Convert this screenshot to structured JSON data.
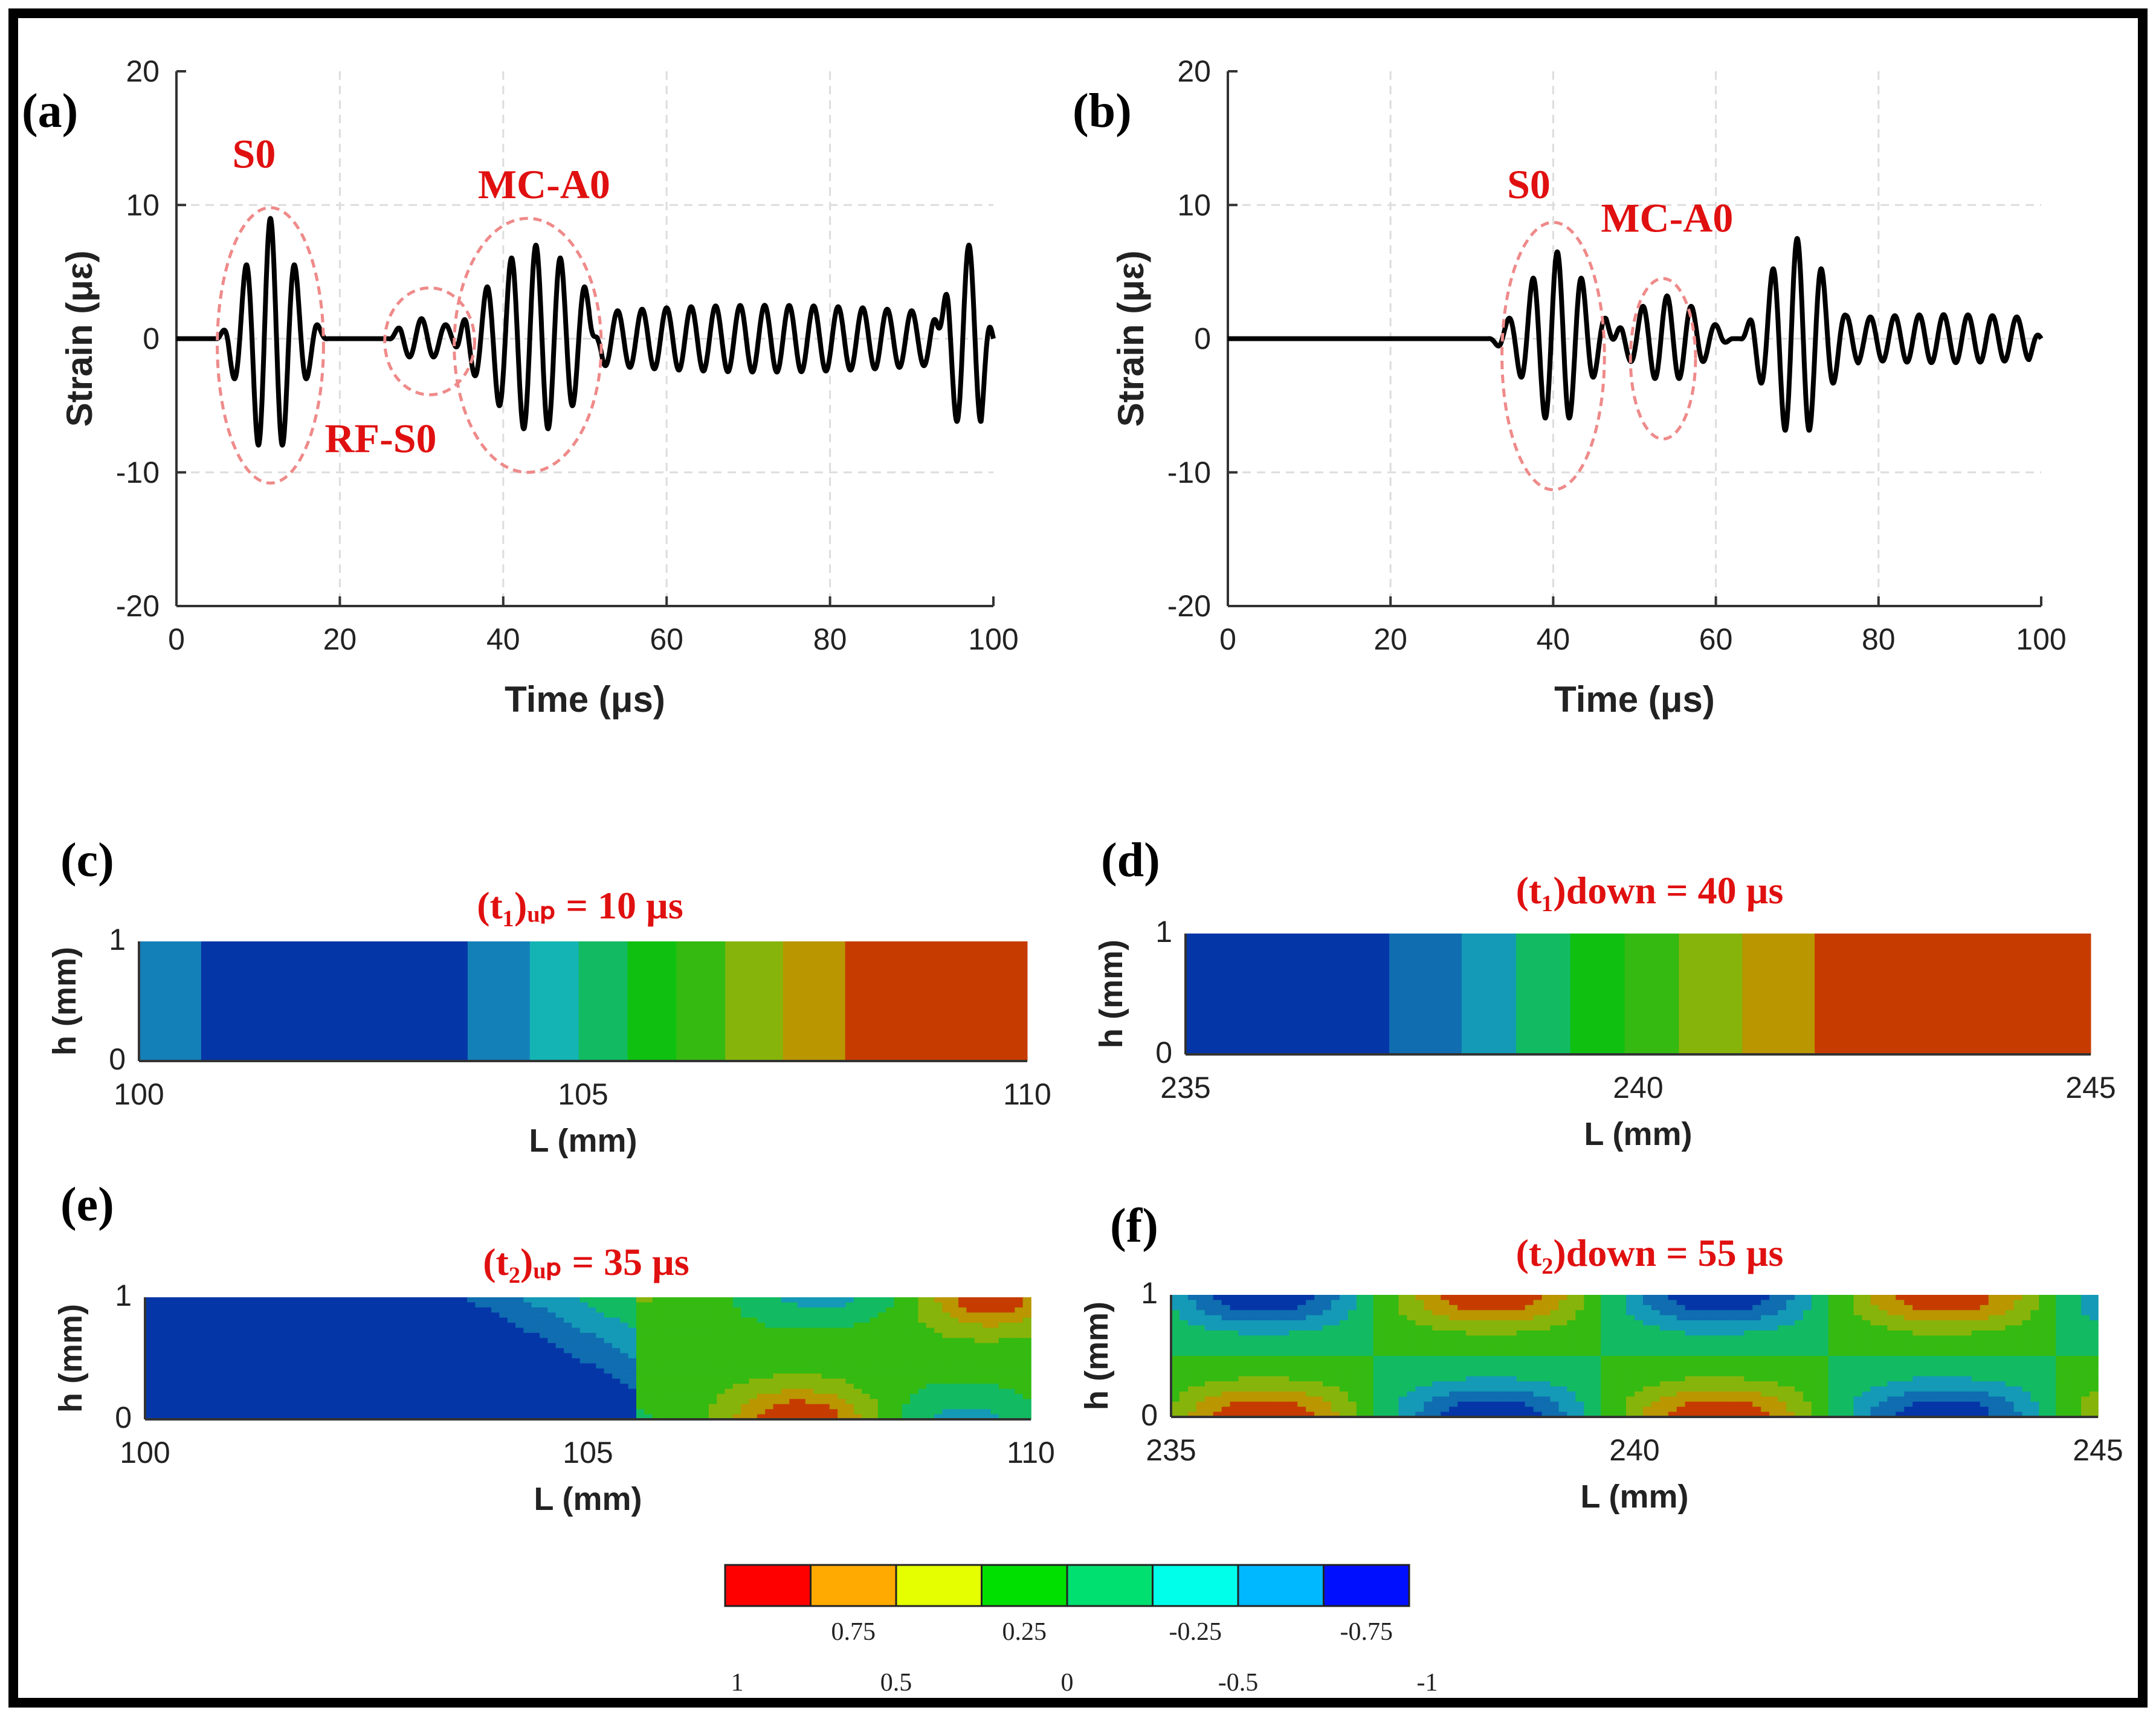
{
  "figure": {
    "border_color": "#000000",
    "annotation_color": "#e01010",
    "ellipse_color": "#ef8a8a"
  },
  "panels": {
    "a": {
      "label": "(a)"
    },
    "b": {
      "label": "(b)"
    },
    "c": {
      "label": "(c)",
      "title": "(t₁)ᵤₚ = 10 µs"
    },
    "d": {
      "label": "(d)",
      "title": "(t₁)down = 40 µs"
    },
    "e": {
      "label": "(e)",
      "title": "(t₂)ᵤₚ = 35 µs"
    },
    "f": {
      "label": "(f)",
      "title": "(t₂)down = 55 µs"
    }
  },
  "chart_data": [
    {
      "id": "a",
      "type": "line",
      "xlabel": "Time (μs)",
      "ylabel": "Strain (με)",
      "xlim": [
        0,
        100
      ],
      "ylim": [
        -20,
        20
      ],
      "xticks": [
        "0",
        "20",
        "40",
        "60",
        "80",
        "100"
      ],
      "yticks": [
        "20",
        "10",
        "0",
        "-10",
        "-20"
      ],
      "grid": true,
      "series": [
        {
          "name": "strain",
          "color": "#000000",
          "packets": [
            {
              "center": 11.5,
              "sigma": 3.0,
              "amp": 9.0,
              "period": 3.0,
              "t0": 5.0,
              "t1": 18.5
            },
            {
              "center": 30.0,
              "sigma": 3.5,
              "amp": 1.5,
              "period": 3.0,
              "t0": 26.0,
              "t1": 36.0
            },
            {
              "center": 44.0,
              "sigma": 5.5,
              "amp": 7.0,
              "period": 3.0,
              "t0": 34.0,
              "t1": 52.0
            },
            {
              "center": 72.0,
              "sigma": 30.0,
              "amp": 2.5,
              "period": 3.0,
              "t0": 50.0,
              "t1": 94.0
            },
            {
              "center": 97.0,
              "sigma": 3.0,
              "amp": 7.0,
              "period": 3.0,
              "t0": 93.0,
              "t1": 100.0
            }
          ]
        }
      ],
      "annotations": [
        {
          "text": "S0",
          "x": 9.5,
          "y": 12.8
        },
        {
          "text": "RF-S0",
          "x": 25.0,
          "y": -8.5
        },
        {
          "text": "MC-A0",
          "x": 45.0,
          "y": 10.5
        }
      ],
      "ellipses": [
        {
          "cx": 11.5,
          "cy": -0.5,
          "rx": 6.5,
          "ry": 10.3
        },
        {
          "cx": 31.0,
          "cy": -0.2,
          "rx": 5.5,
          "ry": 4.0
        },
        {
          "cx": 43.0,
          "cy": -0.5,
          "rx": 9.0,
          "ry": 9.5
        }
      ]
    },
    {
      "id": "b",
      "type": "line",
      "xlabel": "Time (μs)",
      "ylabel": "Strain (με)",
      "xlim": [
        0,
        100
      ],
      "ylim": [
        -20,
        20
      ],
      "xticks": [
        "0",
        "20",
        "40",
        "60",
        "80",
        "100"
      ],
      "yticks": [
        "20",
        "10",
        "0",
        "-10",
        "-20"
      ],
      "grid": true,
      "series": [
        {
          "name": "strain",
          "color": "#000000",
          "packets": [
            {
              "center": 40.5,
              "sigma": 3.5,
              "amp": 6.5,
              "period": 3.0,
              "t0": 32.0,
              "t1": 48.0
            },
            {
              "center": 54.0,
              "sigma": 4.0,
              "amp": 3.2,
              "period": 3.0,
              "t0": 47.0,
              "t1": 62.0
            },
            {
              "center": 70.0,
              "sigma": 3.5,
              "amp": 7.5,
              "period": 3.0,
              "t0": 63.0,
              "t1": 78.0
            },
            {
              "center": 88.0,
              "sigma": 20.0,
              "amp": 1.8,
              "period": 3.0,
              "t0": 76.0,
              "t1": 100.0
            }
          ]
        }
      ],
      "annotations": [
        {
          "text": "S0",
          "x": 37.0,
          "y": 10.5
        },
        {
          "text": "MC-A0",
          "x": 54.0,
          "y": 8.0
        }
      ],
      "ellipses": [
        {
          "cx": 40.0,
          "cy": -1.3,
          "rx": 6.3,
          "ry": 10.0
        },
        {
          "cx": 53.5,
          "cy": -1.5,
          "rx": 4.0,
          "ry": 6.0
        }
      ]
    },
    {
      "id": "c",
      "type": "heatmap",
      "xlabel": "L (mm)",
      "ylabel": "h (mm)",
      "xlim": [
        100,
        110
      ],
      "ylim": [
        0,
        1
      ],
      "xticks": [
        "100",
        "105",
        "110"
      ],
      "yticks": [
        "1",
        "0"
      ],
      "bands": [
        {
          "x0": 100.0,
          "x1": 100.7,
          "level": -0.5
        },
        {
          "x0": 100.7,
          "x1": 103.7,
          "level": -0.875
        },
        {
          "x0": 103.7,
          "x1": 104.4,
          "level": -0.5
        },
        {
          "x0": 104.4,
          "x1": 104.95,
          "level": -0.25
        },
        {
          "x0": 104.95,
          "x1": 105.5,
          "level": -0.125
        },
        {
          "x0": 105.5,
          "x1": 106.05,
          "level": 0.0
        },
        {
          "x0": 106.05,
          "x1": 106.6,
          "level": 0.125
        },
        {
          "x0": 106.6,
          "x1": 107.25,
          "level": 0.375
        },
        {
          "x0": 107.25,
          "x1": 107.95,
          "level": 0.625
        },
        {
          "x0": 107.95,
          "x1": 110.0,
          "level": 0.875
        }
      ]
    },
    {
      "id": "d",
      "type": "heatmap",
      "xlabel": "L (mm)",
      "ylabel": "h (mm)",
      "xlim": [
        235,
        245
      ],
      "ylim": [
        0,
        1
      ],
      "xticks": [
        "235",
        "240",
        "245"
      ],
      "yticks": [
        "1",
        "0"
      ],
      "bands": [
        {
          "x0": 235.0,
          "x1": 237.25,
          "level": -0.875
        },
        {
          "x0": 237.25,
          "x1": 238.05,
          "level": -0.625
        },
        {
          "x0": 238.05,
          "x1": 238.65,
          "level": -0.375
        },
        {
          "x0": 238.65,
          "x1": 239.25,
          "level": -0.125
        },
        {
          "x0": 239.25,
          "x1": 239.85,
          "level": 0.0
        },
        {
          "x0": 239.85,
          "x1": 240.45,
          "level": 0.125
        },
        {
          "x0": 240.45,
          "x1": 241.15,
          "level": 0.375
        },
        {
          "x0": 241.15,
          "x1": 241.95,
          "level": 0.625
        },
        {
          "x0": 241.95,
          "x1": 245.0,
          "level": 0.875
        }
      ]
    },
    {
      "id": "e",
      "type": "heatmap",
      "xlabel": "L (mm)",
      "ylabel": "h (mm)",
      "xlim": [
        100,
        110
      ],
      "ylim": [
        0,
        1
      ],
      "xticks": [
        "100",
        "105",
        "110"
      ],
      "yticks": [
        "1",
        "0"
      ],
      "field": "e"
    },
    {
      "id": "f",
      "type": "heatmap",
      "xlabel": "L (mm)",
      "ylabel": "h (mm)",
      "xlim": [
        235,
        245
      ],
      "ylim": [
        0,
        1
      ],
      "xticks": [
        "235",
        "240",
        "245"
      ],
      "yticks": [
        "1",
        "0"
      ],
      "field": "f"
    },
    {
      "id": "colorbar",
      "type": "colorbar",
      "range": [
        1,
        -1
      ],
      "colors": [
        "#ff0000",
        "#ffaa00",
        "#e5ff00",
        "#00e000",
        "#00e070",
        "#00ffea",
        "#00b8ff",
        "#0010ff"
      ],
      "upper_labels": [
        "0.75",
        "0.25",
        "-0.25",
        "-0.75"
      ],
      "lower_labels": [
        "1",
        "0.5",
        "0",
        "-0.5",
        "-1"
      ]
    }
  ],
  "colormap": {
    "stops": [
      {
        "v": -1.0,
        "c": "#0012a8"
      },
      {
        "v": -0.75,
        "c": "#0a5aa8"
      },
      {
        "v": -0.5,
        "c": "#1480b8"
      },
      {
        "v": -0.25,
        "c": "#14b4b4"
      },
      {
        "v": 0.0,
        "c": "#10c010"
      },
      {
        "v": 0.25,
        "c": "#5ab414"
      },
      {
        "v": 0.5,
        "c": "#b4b400"
      },
      {
        "v": 0.75,
        "c": "#c07800"
      },
      {
        "v": 1.0,
        "c": "#cc0000"
      }
    ]
  }
}
